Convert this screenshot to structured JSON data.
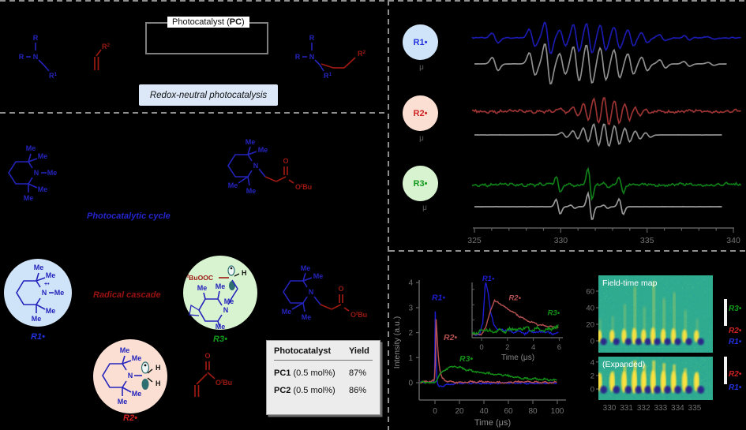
{
  "figure": {
    "scheme": {
      "box_label": {
        "pre": "Photocatalyst (",
        "bold": "PC",
        "post": ")"
      },
      "caption": "Redox-neutral photocatalysis"
    },
    "glyphs": {
      "r": "R",
      "sup1": "1",
      "sup2": "2",
      "n": "N",
      "me": "Me",
      "h": "H",
      "o": "O",
      "sup_t": "t",
      "bu": "Bu",
      "buooc": "BuOOC",
      "radical_cation": "+•",
      "radical_dot": "•"
    },
    "mech": {
      "cycle_label": "Photocatalytic cycle",
      "cascade_label": "Radical cascade"
    },
    "radicals": {
      "r1": {
        "label": "R1•",
        "color": "#2231dd",
        "fill": "#cfe4f8"
      },
      "r2": {
        "label": "R2•",
        "color": "#cf2222",
        "fill": "#fbdfd3"
      },
      "r3": {
        "label": "R3•",
        "color": "#129a1c",
        "fill": "#d8f3cf"
      }
    },
    "epr_panel": {
      "sim_label": "μ"
    },
    "table": {
      "headers": [
        "Photocatalyst",
        "Yield"
      ],
      "rows": [
        {
          "name": "PC1",
          "cond": " (0.5 mol%)",
          "yield": "87%"
        },
        {
          "name": "PC2",
          "cond": " (0.5 mol%)",
          "yield": "86%"
        }
      ]
    },
    "colors": {
      "struct_blue": "#2424bd",
      "struct_red": "#9c1a12",
      "orbital_teal": "#2f6f72",
      "box_border": "#7f7f7f",
      "caption_bg": "#dce8f8",
      "dashed": "#8f8f8f",
      "sim_gray": "#8f8f8f",
      "axis": "#5f5f5f",
      "tick_text": "#747474"
    }
  },
  "chart_data": [
    {
      "id": "epr-spectra",
      "type": "line",
      "x_ticks": [
        325,
        330,
        335,
        340
      ],
      "x_minor_step": 1,
      "x_range": [
        324.85,
        340.4
      ],
      "series": [
        {
          "name": "R1• experiment",
          "role": "experiment",
          "color": "#1a1aae",
          "noise": 0.04,
          "seed": 7,
          "peak_width": 0.17,
          "peaks": [
            [
              326.2,
              0.32
            ],
            [
              328.35,
              0.55
            ],
            [
              329.25,
              1.0
            ],
            [
              330.1,
              0.5
            ],
            [
              330.9,
              0.85
            ],
            [
              331.65,
              0.95
            ],
            [
              332.45,
              0.78
            ],
            [
              333.25,
              0.68
            ],
            [
              334.05,
              0.5
            ],
            [
              334.85,
              0.33
            ],
            [
              335.9,
              0.2
            ],
            [
              337.3,
              0.12
            ],
            [
              338.7,
              0.07
            ]
          ]
        },
        {
          "name": "R1• simulation",
          "role": "simulation",
          "color": "#8f8f8f",
          "noise": 0.004,
          "seed": 3,
          "peak_width": 0.17,
          "peaks": [
            [
              326.2,
              0.32
            ],
            [
              328.35,
              0.55
            ],
            [
              329.25,
              1.0
            ],
            [
              330.1,
              0.5
            ],
            [
              330.9,
              0.85
            ],
            [
              331.65,
              0.95
            ],
            [
              332.45,
              0.78
            ],
            [
              333.25,
              0.68
            ],
            [
              334.05,
              0.5
            ],
            [
              334.85,
              0.33
            ],
            [
              335.9,
              0.2
            ],
            [
              337.3,
              0.12
            ],
            [
              338.7,
              0.07
            ]
          ]
        },
        {
          "name": "R2• experiment",
          "role": "experiment",
          "color": "#9b3333",
          "noise": 0.11,
          "seed": 11,
          "peak_width": 0.15,
          "peaks": [
            [
              330.2,
              0.2
            ],
            [
              330.85,
              0.35
            ],
            [
              331.45,
              0.6
            ],
            [
              332.05,
              0.95
            ],
            [
              332.65,
              1.0
            ],
            [
              333.25,
              0.82
            ],
            [
              333.85,
              0.6
            ],
            [
              334.45,
              0.35
            ],
            [
              335.05,
              0.2
            ]
          ]
        },
        {
          "name": "R2• simulation",
          "role": "simulation",
          "color": "#8f8f8f",
          "noise": 0.004,
          "seed": 5,
          "peak_width": 0.15,
          "peaks": [
            [
              330.2,
              0.2
            ],
            [
              330.85,
              0.35
            ],
            [
              331.45,
              0.6
            ],
            [
              332.05,
              0.95
            ],
            [
              332.65,
              1.0
            ],
            [
              333.25,
              0.82
            ],
            [
              333.85,
              0.6
            ],
            [
              334.45,
              0.35
            ],
            [
              335.05,
              0.2
            ]
          ]
        },
        {
          "name": "R3• experiment",
          "role": "experiment",
          "color": "#0f7d18",
          "noise": 0.1,
          "seed": 23,
          "peak_width": 0.12,
          "peaks": [
            [
              329.85,
              0.55
            ],
            [
              330.7,
              0.12
            ],
            [
              331.7,
              1.0
            ],
            [
              332.6,
              0.12
            ],
            [
              333.5,
              0.58
            ]
          ]
        },
        {
          "name": "R3• simulation",
          "role": "simulation",
          "color": "#9a9a9a",
          "noise": 0.004,
          "seed": 9,
          "peak_width": 0.12,
          "peaks": [
            [
              329.85,
              0.55
            ],
            [
              330.7,
              0.12
            ],
            [
              331.7,
              1.0
            ],
            [
              332.6,
              0.12
            ],
            [
              333.5,
              0.58
            ]
          ]
        }
      ]
    },
    {
      "id": "radical-kinetics",
      "type": "line",
      "xlabel": "Time (μs)",
      "ylabel": "Intensity (a.u.)",
      "x_ticks": [
        0,
        20,
        40,
        60,
        80,
        100
      ],
      "y_ticks": [
        0,
        1,
        2,
        3,
        4
      ],
      "x_range": [
        -12,
        103
      ],
      "y_range": [
        -0.7,
        4.1
      ],
      "series": [
        {
          "name": "R1•",
          "color": "#1c1cd0",
          "noise": 0.035,
          "seed": 4,
          "label_at": [
            -2.6,
            3.3
          ],
          "points": [
            [
              -12,
              0
            ],
            [
              -1,
              0.03
            ],
            [
              -0.3,
              0.15
            ],
            [
              0.2,
              3.05
            ],
            [
              0.7,
              1.4
            ],
            [
              1.2,
              0.45
            ],
            [
              2,
              -0.05
            ],
            [
              3.5,
              -0.15
            ],
            [
              6,
              -0.12
            ],
            [
              10,
              -0.07
            ],
            [
              16,
              -0.04
            ],
            [
              25,
              -0.03
            ],
            [
              40,
              -0.02
            ],
            [
              60,
              -0.02
            ],
            [
              80,
              -0.02
            ],
            [
              100,
              -0.02
            ]
          ]
        },
        {
          "name": "R2•",
          "color": "#b85151",
          "noise": 0.045,
          "seed": 14,
          "label_at": [
            7.1,
            1.7
          ],
          "points": [
            [
              -12,
              0.02
            ],
            [
              -0.5,
              0.05
            ],
            [
              0.3,
              0.8
            ],
            [
              0.9,
              2.55
            ],
            [
              1.6,
              1.95
            ],
            [
              2.4,
              1.25
            ],
            [
              3.4,
              0.7
            ],
            [
              4.5,
              0.38
            ],
            [
              6,
              0.18
            ],
            [
              8,
              0.1
            ],
            [
              11,
              0.05
            ],
            [
              16,
              0.03
            ],
            [
              25,
              0.02
            ],
            [
              50,
              0.02
            ],
            [
              100,
              0.02
            ]
          ]
        },
        {
          "name": "R3•",
          "color": "#129117",
          "noise": 0.05,
          "seed": 27,
          "label_at": [
            20,
            0.85
          ],
          "points": [
            [
              -12,
              0.02
            ],
            [
              -1,
              0.02
            ],
            [
              0.5,
              0.06
            ],
            [
              2,
              0.18
            ],
            [
              4,
              0.33
            ],
            [
              7,
              0.47
            ],
            [
              10,
              0.56
            ],
            [
              13,
              0.62
            ],
            [
              16,
              0.63
            ],
            [
              20,
              0.59
            ],
            [
              25,
              0.53
            ],
            [
              31,
              0.47
            ],
            [
              38,
              0.41
            ],
            [
              45,
              0.36
            ],
            [
              52,
              0.31
            ],
            [
              60,
              0.26
            ],
            [
              68,
              0.21
            ],
            [
              76,
              0.17
            ],
            [
              85,
              0.13
            ],
            [
              93,
              0.1
            ],
            [
              100,
              0.09
            ]
          ]
        }
      ]
    },
    {
      "id": "radical-kinetics-inset",
      "type": "line",
      "xlabel": "Time (μs)",
      "x_ticks": [
        0,
        2,
        4,
        6
      ],
      "x_range": [
        -0.7,
        6.2
      ],
      "series": [
        {
          "name": "R1•",
          "color": "#1c1cd0",
          "noise": 0.09,
          "seed": 31,
          "label_at": [
            0.05,
            3.55
          ],
          "points": [
            [
              -0.7,
              0.05
            ],
            [
              -0.15,
              0.1
            ],
            [
              0.1,
              0.8
            ],
            [
              0.3,
              3.6
            ],
            [
              0.5,
              2.9
            ],
            [
              0.7,
              1.5
            ],
            [
              0.95,
              0.7
            ],
            [
              1.2,
              0.4
            ],
            [
              1.6,
              0.3
            ],
            [
              2,
              0.35
            ],
            [
              2.4,
              0.2
            ],
            [
              2.8,
              0.3
            ],
            [
              3.3,
              0.15
            ],
            [
              3.8,
              0.25
            ],
            [
              4.4,
              0.15
            ],
            [
              5,
              0.2
            ],
            [
              5.5,
              0.1
            ],
            [
              6,
              0.15
            ]
          ]
        },
        {
          "name": "R2•",
          "color": "#b85151",
          "noise": 0.07,
          "seed": 41,
          "label_at": [
            2.1,
            2.3
          ],
          "points": [
            [
              -0.7,
              0.05
            ],
            [
              0,
              0.1
            ],
            [
              0.35,
              0.6
            ],
            [
              0.7,
              1.7
            ],
            [
              1.0,
              2.25
            ],
            [
              1.3,
              2.15
            ],
            [
              1.7,
              1.9
            ],
            [
              2.1,
              1.65
            ],
            [
              2.6,
              1.4
            ],
            [
              3.1,
              1.15
            ],
            [
              3.6,
              0.95
            ],
            [
              4.1,
              0.8
            ],
            [
              4.6,
              0.68
            ],
            [
              5.1,
              0.58
            ],
            [
              5.6,
              0.52
            ],
            [
              6,
              0.5
            ]
          ]
        },
        {
          "name": "R3•",
          "color": "#129117",
          "noise": 0.16,
          "seed": 51,
          "label_at": [
            5.1,
            1.32
          ],
          "points": [
            [
              -0.7,
              0.1
            ],
            [
              -0.2,
              0.2
            ],
            [
              0.3,
              0.35
            ],
            [
              0.8,
              0.22
            ],
            [
              1.3,
              0.4
            ],
            [
              1.8,
              0.28
            ],
            [
              2.3,
              0.45
            ],
            [
              2.8,
              0.3
            ],
            [
              3.3,
              0.42
            ],
            [
              3.8,
              0.32
            ],
            [
              4.3,
              0.45
            ],
            [
              4.8,
              0.35
            ],
            [
              5.3,
              0.5
            ],
            [
              5.7,
              0.45
            ],
            [
              6,
              0.65
            ]
          ]
        }
      ]
    },
    {
      "id": "field-time-map",
      "type": "heatmap",
      "x_ticks": [
        330,
        331,
        332,
        333,
        334,
        335
      ],
      "panels": [
        {
          "name": "full",
          "label": "Field-time map",
          "y_ticks": [
            0,
            20,
            40,
            60
          ]
        },
        {
          "name": "expanded",
          "label": "(Expanded)",
          "y_ticks": [
            0,
            2,
            4
          ]
        }
      ],
      "field_lines_mT": [
        329.45,
        330.2,
        330.9,
        331.5,
        332.05,
        332.6,
        333.2,
        333.8,
        334.45,
        335.15
      ],
      "strengths_full": [
        0.35,
        0.4,
        0.6,
        0.9,
        0.55,
        1.0,
        0.7,
        0.8,
        0.5,
        0.35
      ],
      "strengths_expanded": [
        0.5,
        0.6,
        0.8,
        1.0,
        0.85,
        1.0,
        0.9,
        0.85,
        0.7,
        0.55
      ],
      "colormap": {
        "background": "#2fab90",
        "positive": "#ffe33c",
        "negative": "#2c1f8a"
      },
      "time_windows": [
        {
          "label": "R3•",
          "color": "#129a1c"
        },
        {
          "label": "R2•",
          "color": "#cf2222"
        },
        {
          "label": "R1•",
          "color": "#2231dd"
        }
      ],
      "time_windows_expanded": [
        {
          "label": "R2•",
          "color": "#cf2222"
        },
        {
          "label": "R1•",
          "color": "#2231dd"
        }
      ]
    }
  ]
}
